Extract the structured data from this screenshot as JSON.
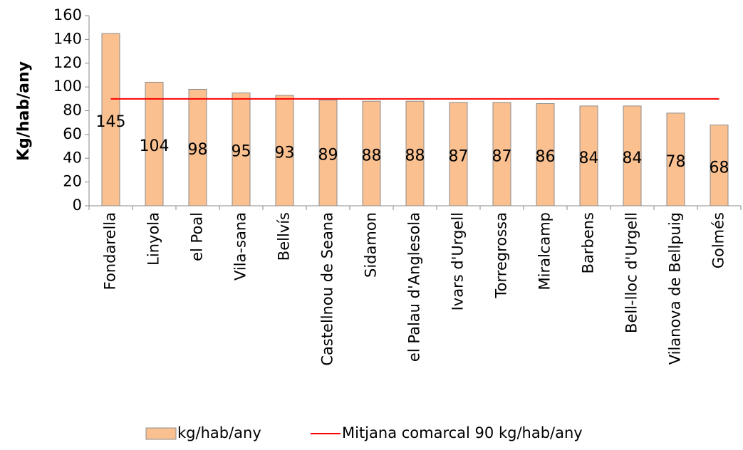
{
  "chart_data": {
    "type": "bar",
    "ylabel": "Kg/hab/any",
    "categories": [
      "Fondarella",
      "Linyola",
      "el Poal",
      "Vila-sana",
      "Bellvís",
      "Castellnou de Seana",
      "Sidamon",
      "el Palau d'Anglesola",
      "Ivars d'Urgell",
      "Torregrossa",
      "Miralcamp",
      "Barbens",
      "Bell-lloc d'Urgell",
      "Vilanova de Bellpuig",
      "Golmés"
    ],
    "series": [
      {
        "name": "kg/hab/any",
        "type": "bar",
        "color": "#fac090",
        "values": [
          145,
          104,
          98,
          95,
          93,
          89,
          88,
          88,
          87,
          87,
          86,
          84,
          84,
          78,
          68
        ]
      },
      {
        "name": "Mitjana comarcal 90 kg/hab/any",
        "type": "line",
        "color": "#ff0000",
        "values": [
          90,
          90,
          90,
          90,
          90,
          90,
          90,
          90,
          90,
          90,
          90,
          90,
          90,
          90,
          90
        ]
      }
    ],
    "ylim": [
      0,
      160
    ],
    "yticks": [
      0,
      20,
      40,
      60,
      80,
      100,
      120,
      140,
      160
    ],
    "legend": "bottom"
  }
}
